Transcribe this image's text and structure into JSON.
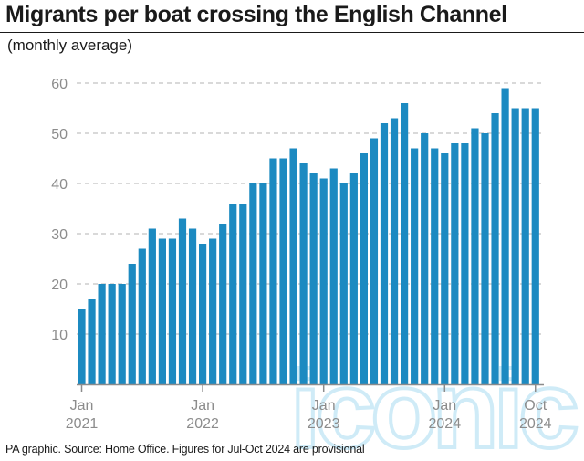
{
  "header": {
    "title": "Migrants per boat crossing the English Channel",
    "subtitle": "(monthly average)"
  },
  "footer": {
    "source": "PA graphic. Source: Home Office. Figures for Jul-Oct 2024 are provisional"
  },
  "watermark": "iconic",
  "colors": {
    "bar": "#1c8ac1",
    "grid": "#b3b3b3",
    "axis": "#8c8c8c"
  },
  "chart_data": {
    "type": "bar",
    "title": "Migrants per boat crossing the English Channel",
    "subtitle": "(monthly average)",
    "xlabel": "",
    "ylabel": "",
    "ylim": [
      0,
      60
    ],
    "yticks": [
      10,
      20,
      30,
      40,
      50,
      60
    ],
    "grid": true,
    "x_tick_labels": [
      {
        "month_index": 0,
        "line1": "Jan",
        "line2": "2021"
      },
      {
        "month_index": 12,
        "line1": "Jan",
        "line2": "2022"
      },
      {
        "month_index": 24,
        "line1": "Jan",
        "line2": "2023"
      },
      {
        "month_index": 36,
        "line1": "Jan",
        "line2": "2024"
      },
      {
        "month_index": 45,
        "line1": "Oct",
        "line2": "2024"
      }
    ],
    "categories": [
      "Jan 2021",
      "Feb 2021",
      "Mar 2021",
      "Apr 2021",
      "May 2021",
      "Jun 2021",
      "Jul 2021",
      "Aug 2021",
      "Sep 2021",
      "Oct 2021",
      "Nov 2021",
      "Dec 2021",
      "Jan 2022",
      "Feb 2022",
      "Mar 2022",
      "Apr 2022",
      "May 2022",
      "Jun 2022",
      "Jul 2022",
      "Aug 2022",
      "Sep 2022",
      "Oct 2022",
      "Nov 2022",
      "Dec 2022",
      "Jan 2023",
      "Feb 2023",
      "Mar 2023",
      "Apr 2023",
      "May 2023",
      "Jun 2023",
      "Jul 2023",
      "Aug 2023",
      "Sep 2023",
      "Oct 2023",
      "Nov 2023",
      "Dec 2023",
      "Jan 2024",
      "Feb 2024",
      "Mar 2024",
      "Apr 2024",
      "May 2024",
      "Jun 2024",
      "Jul 2024",
      "Aug 2024",
      "Sep 2024",
      "Oct 2024"
    ],
    "values": [
      15,
      17,
      20,
      20,
      20,
      24,
      27,
      31,
      29,
      29,
      33,
      31,
      28,
      29,
      32,
      36,
      36,
      40,
      40,
      45,
      45,
      47,
      44,
      42,
      41,
      43,
      40,
      42,
      46,
      49,
      52,
      53,
      56,
      47,
      50,
      47,
      46,
      48,
      48,
      51,
      50,
      54,
      59,
      55,
      55,
      55
    ]
  }
}
